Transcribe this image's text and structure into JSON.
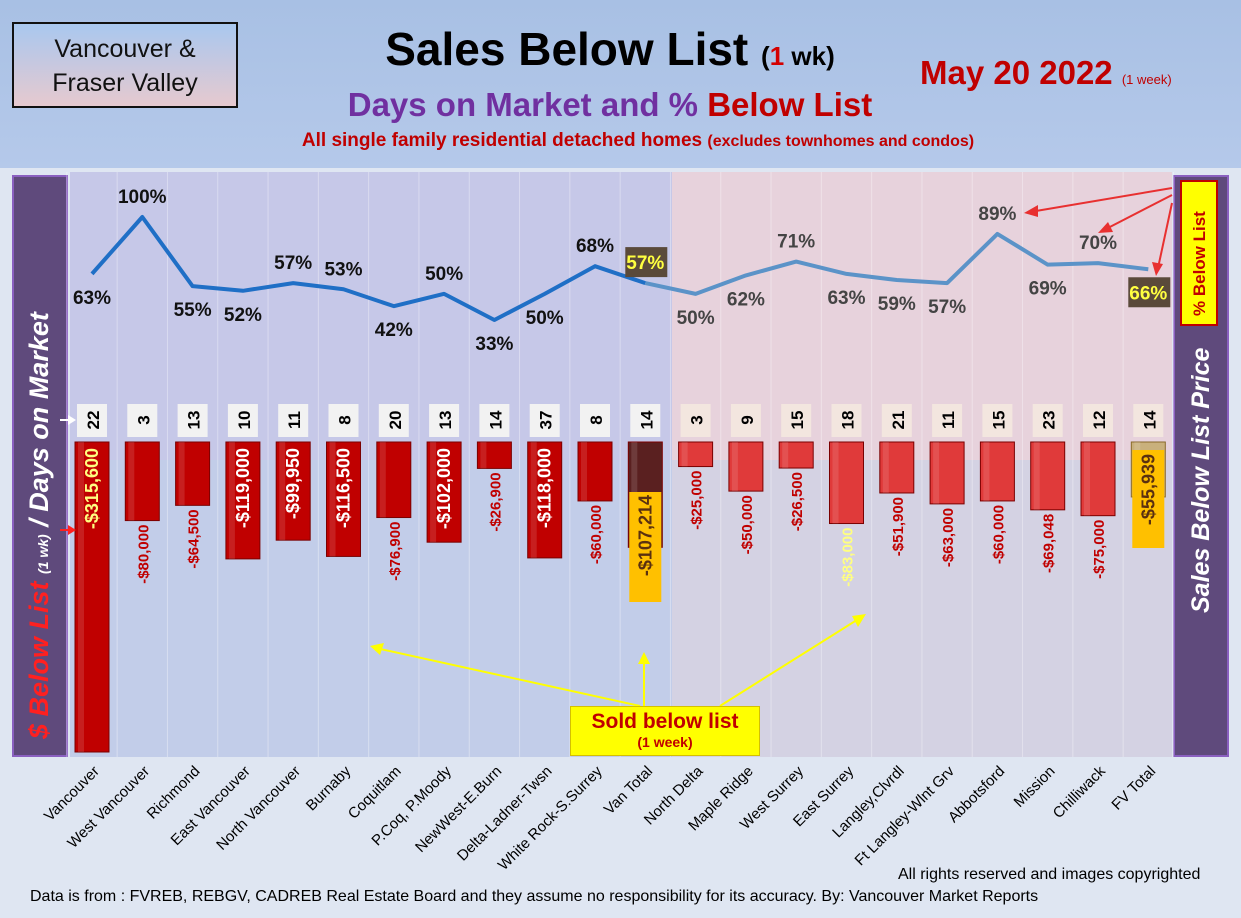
{
  "header": {
    "region": [
      "Vancouver &",
      "Fraser Valley"
    ],
    "title": "Sales Below List",
    "title_paren_open": "(",
    "title_paren_num": "1",
    "title_paren_rest": " wk)",
    "subtitle_part1": "Days on Market and % ",
    "subtitle_part2": "Below List",
    "description": "All single family residential detached homes",
    "description_note": "(excludes townhomes and condos)",
    "date": "May 20  2022",
    "date_note": "(1 week)"
  },
  "left_axis_label": {
    "part1": "$ Below List",
    "part2": "(1 wk)",
    "part3": "/ Days on Market"
  },
  "right_axis_label": "Sales Below List Price",
  "pct_box_label": "% Below List",
  "callout": {
    "line1": "Sold below list",
    "line2": "(1 week)"
  },
  "footer": {
    "rights": "All rights reserved and  images copyrighted",
    "source": "Data is from : FVREB, REBGV, CADREB Real Estate Board and they assume no responsibility for its accuracy. By: Vancouver Market Reports"
  },
  "chart_data": {
    "type": "bar",
    "categories": [
      "Vancouver",
      "West Vancouver",
      "Richmond",
      "East Vancouver",
      "North Vancouver",
      "Burnaby",
      "Coquitlam",
      "P.Coq, P.Moody",
      "NewWest-E.Burn",
      "Delta-Ladner-Twsn",
      "White Rock-S.Surrey",
      "Van Total",
      "North Delta",
      "Maple Ridge",
      "West Surrey",
      "East Surrey",
      "Langley,Clvrdl",
      "Ft Langley-Wlnt Grv",
      "Abbotsford",
      "Mission",
      "Chilliwack",
      "FV Total"
    ],
    "series": [
      {
        "values": [
          -315600,
          -80000,
          -64500,
          -119000,
          -99950,
          -116500,
          -76900,
          -102000,
          -26900,
          -118000,
          -60000,
          -107214,
          -25000,
          -50000,
          -26500,
          -83000,
          -51900,
          -63000,
          -60000,
          -69048,
          -75000,
          -55939
        ],
        "labels": [
          "-$315,600",
          "-$80,000",
          "-$64,500",
          "-$119,000",
          "-$99,950",
          "-$116,500",
          "-$76,900",
          "-$102,000",
          "-$26,900",
          "-$118,000",
          "-$60,000",
          "-$107,214",
          "-$25,000",
          "-$50,000",
          "-$26,500",
          "-$83,000",
          "-$51,900",
          "-$63,000",
          "-$60,000",
          "-$69,048",
          "-$75,000",
          "-$55,939"
        ]
      },
      {
        "values": [
          22,
          3,
          13,
          10,
          11,
          8,
          20,
          13,
          14,
          37,
          8,
          14,
          3,
          9,
          15,
          18,
          21,
          11,
          15,
          23,
          12,
          14
        ]
      },
      {
        "values": [
          63,
          100,
          55,
          52,
          57,
          53,
          42,
          50,
          33,
          50,
          68,
          57,
          50,
          62,
          71,
          63,
          59,
          57,
          89,
          69,
          70,
          66
        ],
        "labels": [
          "63%",
          "100%",
          "55%",
          "52%",
          "57%",
          "53%",
          "42%",
          "50%",
          "33%",
          "50%",
          "68%",
          "57%",
          "50%",
          "62%",
          "71%",
          "63%",
          "59%",
          "57%",
          "89%",
          "69%",
          "70%",
          "66%"
        ]
      }
    ],
    "totals_index": [
      11,
      21
    ],
    "colors": {
      "bar_vancouver": "#c00000",
      "bar_fraser": "#e03a3a",
      "bar_van_total": "#5a2020",
      "bar_fv_total": "#ffc000",
      "line_vancouver": "#1f6fc6",
      "line_fraser": "#5b93c8",
      "label_dark_red": "#c00000",
      "label_white": "#ffffff"
    }
  }
}
